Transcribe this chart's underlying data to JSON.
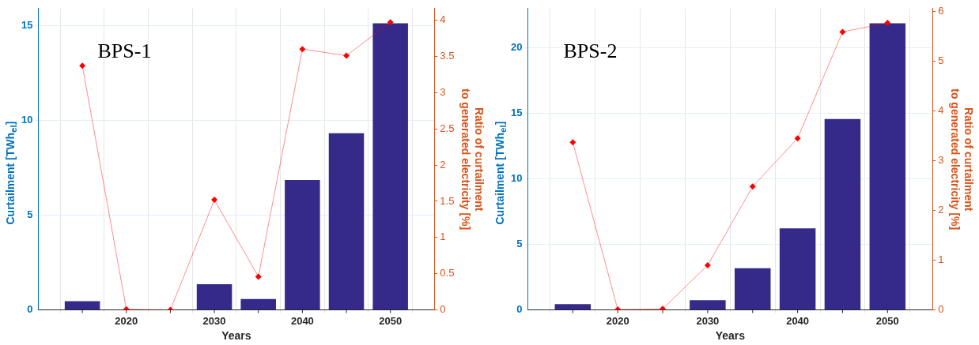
{
  "chart_data": [
    {
      "type": "bar",
      "annotations": [
        "BPS-1"
      ],
      "xlabel": "Years",
      "ylabel": "Curtailment [TWh$_{el}$]",
      "y2label": "Ratio of curtailment\nto generated electricity [%]",
      "x": [
        2015,
        2020,
        2025,
        2030,
        2035,
        2040,
        2045,
        2050
      ],
      "series": [
        {
          "color": "#35298a",
          "values": [
            0.46,
            0,
            0,
            1.36,
            0.58,
            6.85,
            9.32,
            15.12
          ]
        },
        {
          "type": "line",
          "axis": "y2",
          "color": "#ff0000",
          "values": [
            3.37,
            0.01,
            0,
            1.52,
            0.46,
            3.6,
            3.51,
            3.97
          ]
        }
      ],
      "xlim": [
        2010,
        2055
      ],
      "xticks": [
        {
          "value": 2015,
          "label": null
        },
        2020,
        {
          "value": 2025,
          "label": null
        },
        2030,
        {
          "value": 2035,
          "label": null
        },
        2040,
        {
          "value": 2045,
          "label": null
        },
        2050
      ],
      "ylim": [
        0,
        15.9
      ],
      "yticks": [
        0,
        5,
        10,
        15
      ],
      "y2lim": [
        0,
        4.16
      ],
      "y2ticks": [
        0,
        0.5,
        1,
        1.5,
        2,
        2.5,
        3,
        3.5,
        4
      ],
      "grid": true,
      "marker": "diamond",
      "legend": false
    },
    {
      "type": "bar",
      "annotations": [
        "BPS-2"
      ],
      "xlabel": "Years",
      "ylabel": "Curtailment [TWh$_{el}$]",
      "y2label": "Ratio of curtailment\nto generated electricity [%]",
      "x": [
        2015,
        2020,
        2025,
        2030,
        2035,
        2040,
        2045,
        2050
      ],
      "series": [
        {
          "color": "#35298a",
          "values": [
            0.45,
            0,
            null,
            0.74,
            3.18,
            6.22,
            14.57,
            21.87
          ]
        },
        {
          "type": "line",
          "axis": "y2",
          "color": "#ff0000",
          "values": [
            3.37,
            0.01,
            0.02,
            0.9,
            2.48,
            3.45,
            5.59,
            5.77
          ]
        }
      ],
      "xlim": [
        2010,
        2055
      ],
      "xticks": [
        {
          "value": 2015,
          "label": null
        },
        2020,
        {
          "value": 2025,
          "label": null
        },
        2030,
        {
          "value": 2035,
          "label": null
        },
        2040,
        {
          "value": 2045,
          "label": null
        },
        2050
      ],
      "ylim": [
        0,
        23
      ],
      "yticks": [
        0,
        5,
        10,
        15,
        20
      ],
      "y2lim": [
        0,
        6.06
      ],
      "y2ticks": [
        0,
        1,
        2,
        3,
        4,
        5,
        6
      ],
      "grid": true,
      "marker": "diamond",
      "legend": false
    }
  ]
}
